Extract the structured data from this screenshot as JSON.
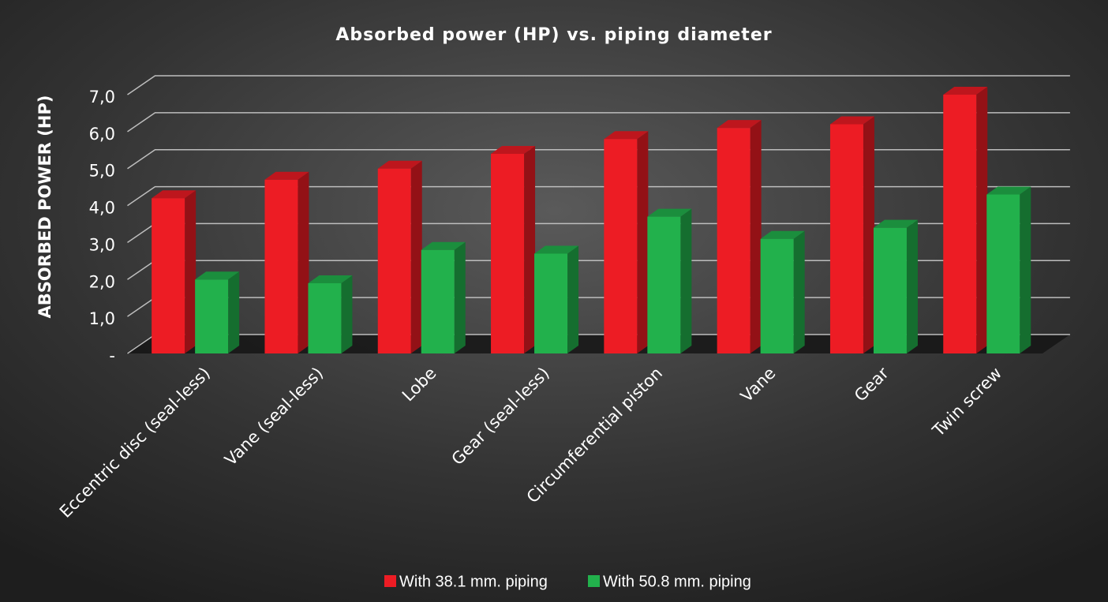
{
  "chart_data": {
    "type": "bar3d",
    "title": "Absorbed power (HP) vs. piping diameter",
    "ylabel": "ABSORBED POWER (HP)",
    "categories": [
      "Eccentric disc (seal-less)",
      "Vane (seal-less)",
      "Lobe",
      "Gear (seal-less)",
      "Circumferential piston",
      "Vane",
      "Gear",
      "Twin screw"
    ],
    "series": [
      {
        "name": "With 38.1 mm. piping",
        "color": "#ed1c24",
        "values": [
          4.2,
          4.7,
          5.0,
          5.4,
          5.8,
          6.1,
          6.2,
          7.0
        ]
      },
      {
        "name": "With 50.8 mm. piping",
        "color": "#22b14c",
        "values": [
          2.0,
          1.9,
          2.8,
          2.7,
          3.7,
          3.1,
          3.4,
          4.3
        ]
      }
    ],
    "ylim": [
      0,
      7
    ],
    "yticks": [
      {
        "value": 0,
        "label": "-"
      },
      {
        "value": 1,
        "label": "1,0"
      },
      {
        "value": 2,
        "label": "2,0"
      },
      {
        "value": 3,
        "label": "3,0"
      },
      {
        "value": 4,
        "label": "4,0"
      },
      {
        "value": 5,
        "label": "5,0"
      },
      {
        "value": 6,
        "label": "6,0"
      },
      {
        "value": 7,
        "label": "7,0"
      }
    ],
    "grid": true,
    "legend": "bottom"
  }
}
